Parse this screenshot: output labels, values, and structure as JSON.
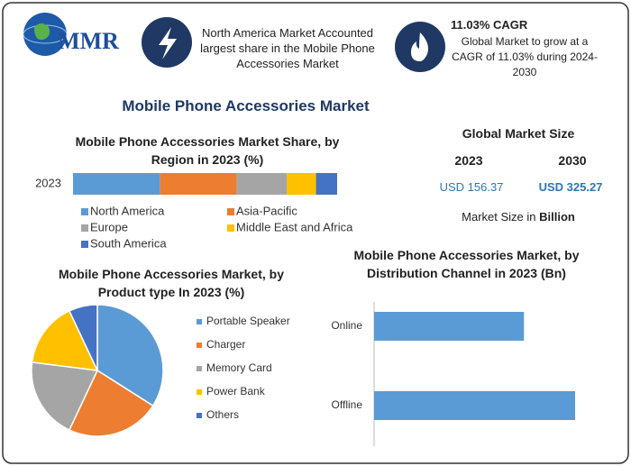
{
  "header": {
    "logo": "MMR",
    "highlight": "North America Market Accounted largest share in the Mobile Phone Accessories Market",
    "cagr_title": "11.03% CAGR",
    "cagr_text": "Global Market to grow at a CAGR of 11.03% during 2024-2030"
  },
  "title": "Mobile Phone Accessories Market",
  "market_size": {
    "title": "Global Market Size",
    "years": [
      "2023",
      "2030"
    ],
    "values": [
      "USD 156.37",
      "USD 325.27"
    ],
    "note": "Market Size in",
    "unit": "Billion"
  },
  "chart_data": [
    {
      "type": "bar",
      "orientation": "horizontal",
      "stacked": true,
      "title": "Mobile Phone Accessories Market Share, by Region in 2023 (%)",
      "categories": [
        "2023"
      ],
      "series": [
        {
          "name": "North America",
          "color": "#5b9bd5",
          "values": [
            33
          ]
        },
        {
          "name": "Asia-Pacific",
          "color": "#ed7d31",
          "values": [
            29
          ]
        },
        {
          "name": "Europe",
          "color": "#a5a5a5",
          "values": [
            19
          ]
        },
        {
          "name": "Middle East and Africa",
          "color": "#ffc000",
          "values": [
            11
          ]
        },
        {
          "name": "South America",
          "color": "#4472c4",
          "values": [
            8
          ]
        }
      ]
    },
    {
      "type": "pie",
      "title": "Mobile Phone Accessories Market, by Product type In 2023 (%)",
      "categories": [
        "Portable Speaker",
        "Charger",
        "Memory Card",
        "Power Bank",
        "Others"
      ],
      "values": [
        34,
        23,
        20,
        16,
        7
      ],
      "colors": [
        "#5b9bd5",
        "#ed7d31",
        "#a5a5a5",
        "#ffc000",
        "#4472c4"
      ]
    },
    {
      "type": "bar",
      "orientation": "horizontal",
      "title": "Mobile Phone Accessories Market, by Distribution Channel in 2023 (Bn)",
      "categories": [
        "Online",
        "Offline"
      ],
      "values": [
        66.8,
        89.6
      ],
      "color": "#5b9bd5"
    }
  ]
}
